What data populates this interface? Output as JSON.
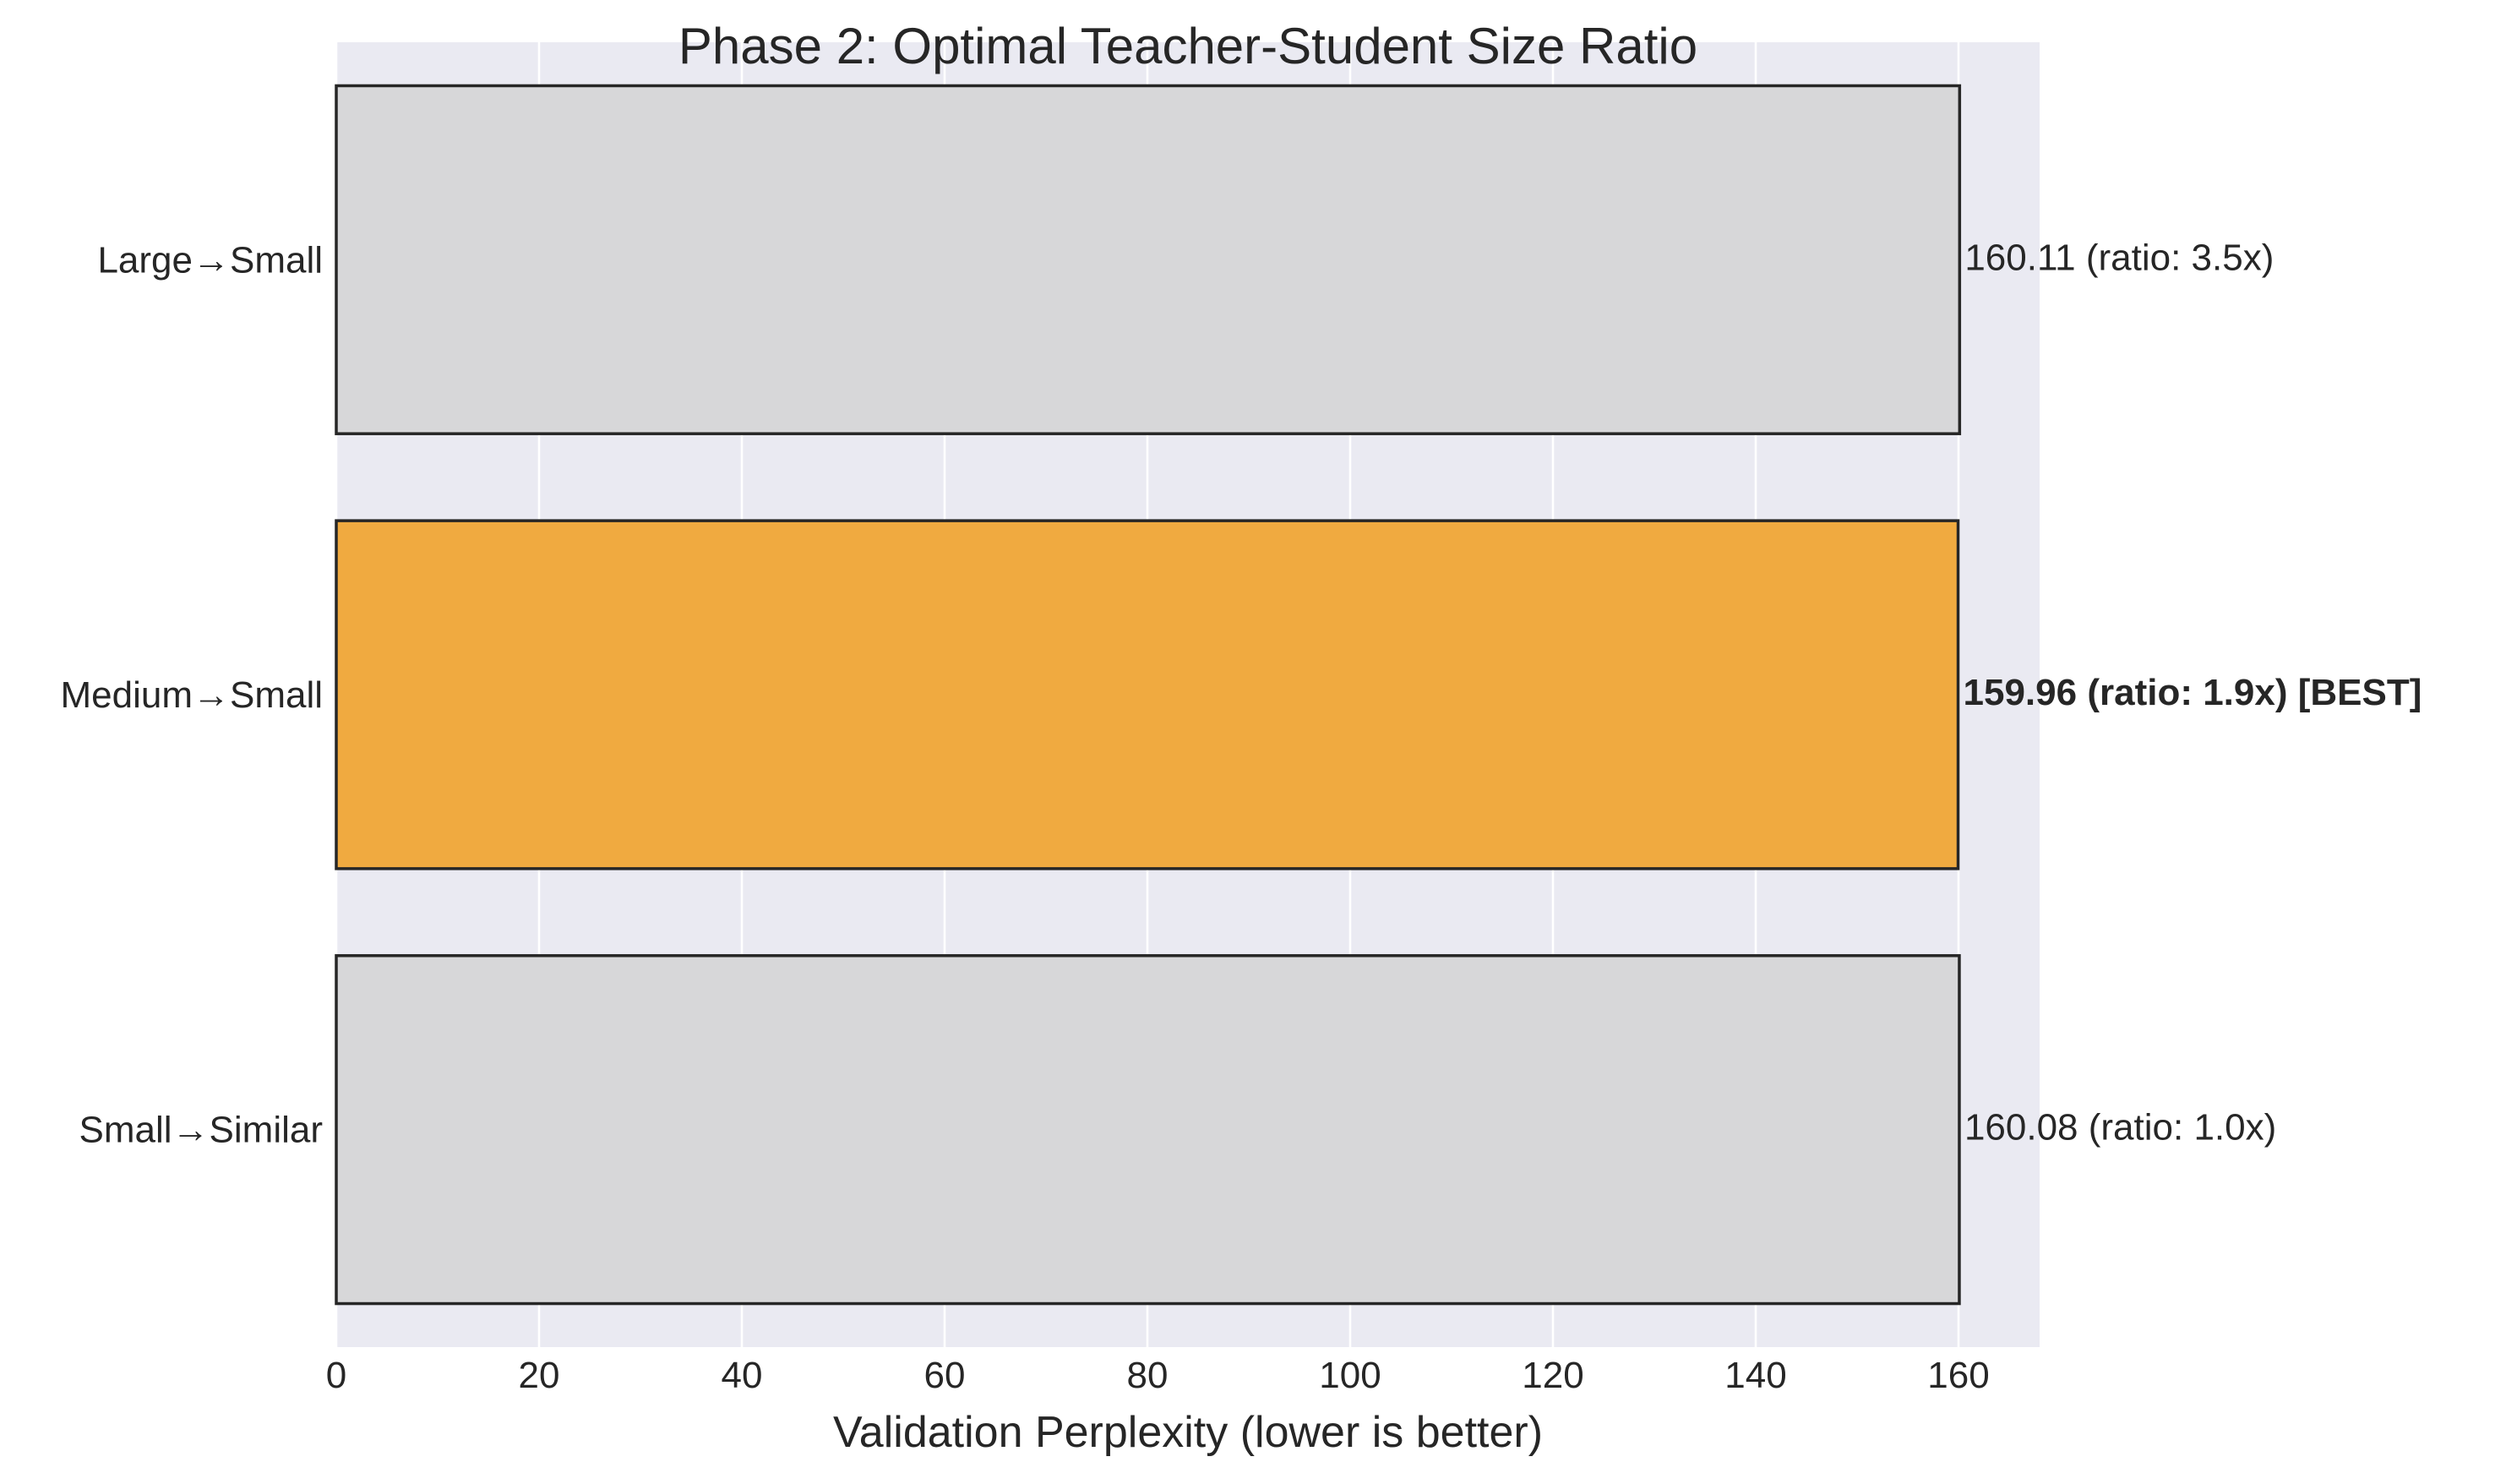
{
  "chart_data": {
    "type": "bar",
    "orientation": "horizontal",
    "title": "Phase 2: Optimal Teacher-Student Size Ratio",
    "xlabel": "Validation Perplexity (lower is better)",
    "ylabel": "",
    "xlim": [
      0,
      168
    ],
    "xticks": [
      0,
      20,
      40,
      60,
      80,
      100,
      120,
      140,
      160
    ],
    "grid": true,
    "categories": [
      "Large→Small",
      "Medium→Small",
      "Small→Similar"
    ],
    "values": [
      160.11,
      159.96,
      160.08
    ],
    "data_labels": [
      "160.11 (ratio: 3.5x)",
      "159.96 (ratio: 1.9x) [BEST]",
      "160.08 (ratio: 1.0x)"
    ],
    "highlight_index": 1,
    "colors": {
      "bar_default": "#d7d7d9",
      "bar_best": "#f0aa40",
      "plot_background": "#eaeaf2",
      "edge": "#262626"
    }
  }
}
